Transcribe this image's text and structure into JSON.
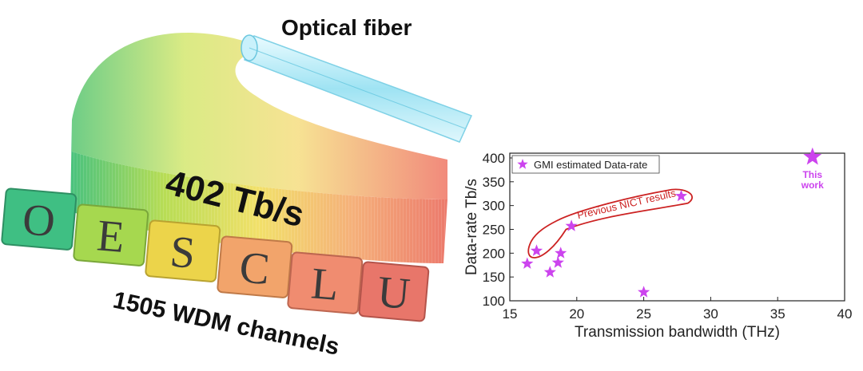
{
  "illustration": {
    "fiber_label": "Optical fiber",
    "rate_label": "402 Tb/s",
    "channels_label": "1505 WDM channels",
    "bands": [
      {
        "letter": "O",
        "color": "#3fbf83"
      },
      {
        "letter": "E",
        "color": "#a6d84f"
      },
      {
        "letter": "S",
        "color": "#ecd44a"
      },
      {
        "letter": "C",
        "color": "#f2a46b"
      },
      {
        "letter": "L",
        "color": "#f08c70"
      },
      {
        "letter": "U",
        "color": "#e8766a"
      }
    ]
  },
  "chart_data": {
    "type": "scatter",
    "xlabel": "Transmission bandwidth (THz)",
    "ylabel": "Data-rate Tb/s",
    "xlim": [
      15,
      40
    ],
    "ylim": [
      100,
      410
    ],
    "xticks": [
      15,
      20,
      25,
      30,
      35,
      40
    ],
    "yticks": [
      100,
      150,
      200,
      250,
      300,
      350,
      400
    ],
    "legend": {
      "label": "GMI estimated Data-rate",
      "position": "top-left"
    },
    "series": [
      {
        "name": "GMI estimated Data-rate",
        "color": "#cc44ee",
        "points": [
          {
            "x": 16.3,
            "y": 178
          },
          {
            "x": 17.0,
            "y": 205
          },
          {
            "x": 18.0,
            "y": 160
          },
          {
            "x": 18.6,
            "y": 180
          },
          {
            "x": 18.8,
            "y": 200
          },
          {
            "x": 19.6,
            "y": 257
          },
          {
            "x": 25.0,
            "y": 118
          },
          {
            "x": 27.8,
            "y": 320
          }
        ]
      }
    ],
    "highlight": {
      "x": 37.6,
      "y": 402,
      "label_line1": "This",
      "label_line2": "work",
      "color": "#cc44ee"
    },
    "annotation": {
      "text": "Previous NICT results",
      "color": "#cc2222"
    }
  }
}
